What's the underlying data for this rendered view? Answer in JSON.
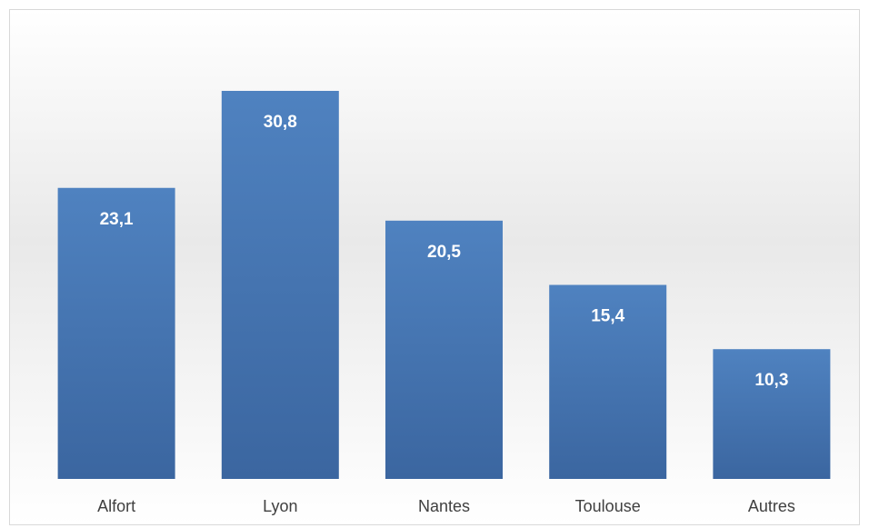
{
  "chart_data": {
    "type": "bar",
    "categories": [
      "Alfort",
      "Lyon",
      "Nantes",
      "Toulouse",
      "Autres"
    ],
    "values": [
      23.1,
      30.8,
      20.5,
      15.4,
      10.3
    ],
    "value_labels": [
      "23,1",
      "30,8",
      "20,5",
      "15,4",
      "10,3"
    ],
    "color": "#4a7ab8"
  }
}
